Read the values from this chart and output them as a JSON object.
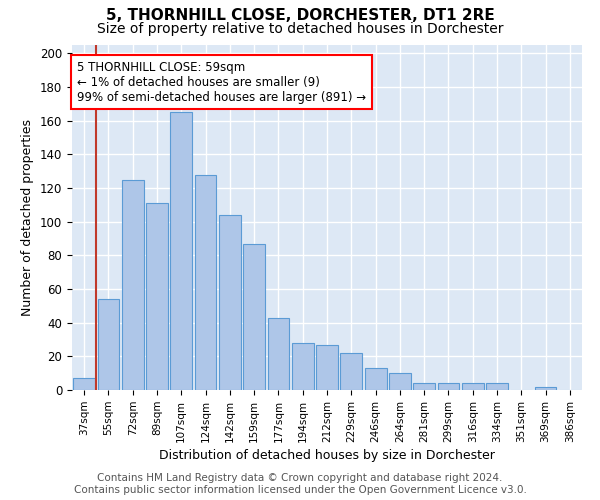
{
  "title": "5, THORNHILL CLOSE, DORCHESTER, DT1 2RE",
  "subtitle": "Size of property relative to detached houses in Dorchester",
  "xlabel": "Distribution of detached houses by size in Dorchester",
  "ylabel": "Number of detached properties",
  "bar_labels": [
    "37sqm",
    "55sqm",
    "72sqm",
    "89sqm",
    "107sqm",
    "124sqm",
    "142sqm",
    "159sqm",
    "177sqm",
    "194sqm",
    "212sqm",
    "229sqm",
    "246sqm",
    "264sqm",
    "281sqm",
    "299sqm",
    "316sqm",
    "334sqm",
    "351sqm",
    "369sqm",
    "386sqm"
  ],
  "bar_values": [
    7,
    54,
    125,
    111,
    165,
    128,
    104,
    87,
    43,
    28,
    27,
    22,
    13,
    10,
    4,
    4,
    4,
    4,
    0,
    2,
    0
  ],
  "bar_color": "#aec6e8",
  "bar_edge_color": "#5b9bd5",
  "annotation_text": "5 THORNHILL CLOSE: 59sqm\n← 1% of detached houses are smaller (9)\n99% of semi-detached houses are larger (891) →",
  "annotation_box_color": "white",
  "annotation_box_edge_color": "red",
  "vline_color": "#c0392b",
  "ylim": [
    0,
    205
  ],
  "yticks": [
    0,
    20,
    40,
    60,
    80,
    100,
    120,
    140,
    160,
    180,
    200
  ],
  "background_color": "#dde8f5",
  "grid_color": "white",
  "footer_line1": "Contains HM Land Registry data © Crown copyright and database right 2024.",
  "footer_line2": "Contains public sector information licensed under the Open Government Licence v3.0.",
  "title_fontsize": 11,
  "subtitle_fontsize": 10,
  "annotation_fontsize": 8.5,
  "footer_fontsize": 7.5,
  "ylabel_fontsize": 9,
  "xlabel_fontsize": 9
}
